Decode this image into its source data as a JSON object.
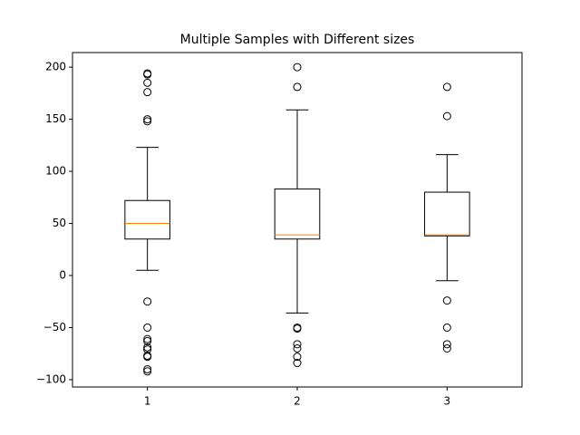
{
  "chart_data": {
    "type": "boxplot",
    "title": "Multiple Samples with Different sizes",
    "categories": [
      "1",
      "2",
      "3"
    ],
    "series": [
      {
        "whislo": 5,
        "q1": 35,
        "med": 50,
        "q3": 72,
        "whishi": 123,
        "fliers": [
          194,
          193,
          185,
          176,
          150,
          148,
          -25,
          -50,
          -61,
          -63,
          -69,
          -71,
          -77,
          -78,
          -90,
          -92
        ]
      },
      {
        "whislo": -36,
        "q1": 35,
        "med": 39,
        "q3": 83,
        "whishi": 159,
        "fliers": [
          200,
          181,
          -50,
          -51,
          -66,
          -70,
          -78,
          -84
        ]
      },
      {
        "whislo": -5,
        "q1": 38,
        "med": 39,
        "q3": 80,
        "whishi": 116,
        "fliers": [
          181,
          153,
          -24,
          -50,
          -66,
          -70
        ]
      }
    ],
    "box_color": "#000000",
    "median_color": "#ff7f0e",
    "ylim": [
      -107,
      214
    ],
    "yticks": [
      {
        "value": -100,
        "label": "−100"
      },
      {
        "value": -50,
        "label": "−50"
      },
      0,
      50,
      100,
      150,
      200
    ]
  }
}
